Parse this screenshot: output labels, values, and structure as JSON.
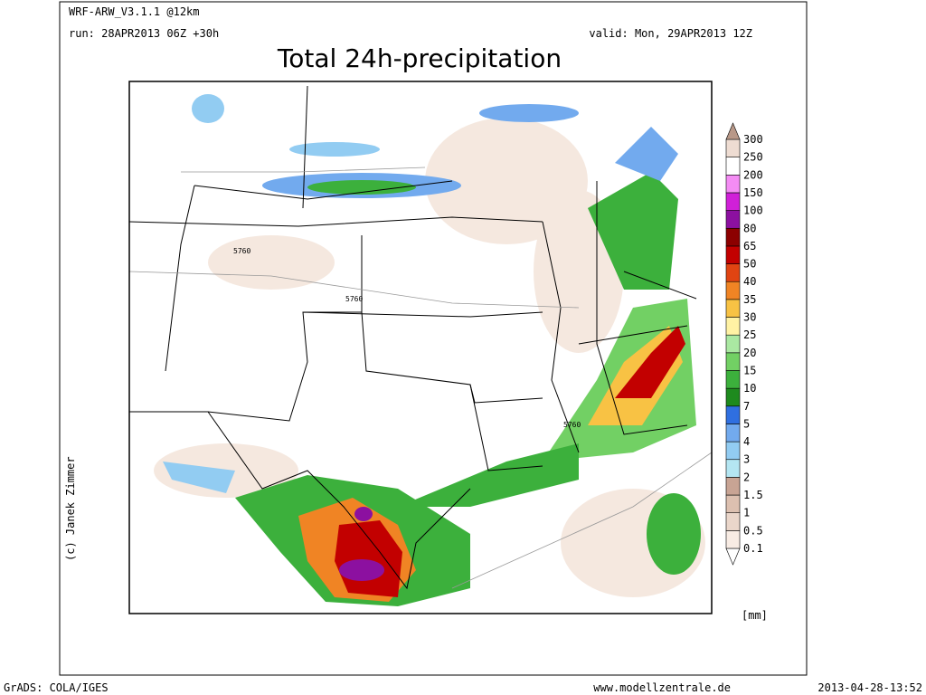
{
  "header": {
    "model": "WRF-ARW_V3.1.1 @12km",
    "run": "run: 28APR2013 06Z +30h",
    "valid": "valid: Mon, 29APR2013 12Z",
    "title": "Total 24h-precipitation"
  },
  "map": {
    "contour_labels": [
      "5760",
      "5760",
      "5760"
    ]
  },
  "colorbar": {
    "levels": [
      0.1,
      0.5,
      1,
      1.5,
      2,
      3,
      4,
      5,
      7,
      10,
      15,
      20,
      25,
      30,
      35,
      40,
      50,
      65,
      80,
      100,
      150,
      200,
      250,
      300
    ],
    "colors": [
      "#ffffff",
      "#f8ece4",
      "#ead6ca",
      "#dcc0b0",
      "#c8a494",
      "#b4e6f2",
      "#92ccf2",
      "#72aaee",
      "#2f6fe0",
      "#1e8a1e",
      "#3cb03c",
      "#72d064",
      "#aae8a2",
      "#fff2a4",
      "#f8c244",
      "#f08424",
      "#e04412",
      "#c20000",
      "#8c0000",
      "#8c10a0",
      "#d020d8",
      "#f48cf4",
      "#ffffff",
      "#eedcd2",
      "#b89888"
    ],
    "unit": "[mm]"
  },
  "footer": {
    "left": "GrADS: COLA/IGES",
    "site": "www.modellzentrale.de",
    "timestamp": "2013-04-28-13:52",
    "credit": "(c) Janek Zimmer"
  }
}
